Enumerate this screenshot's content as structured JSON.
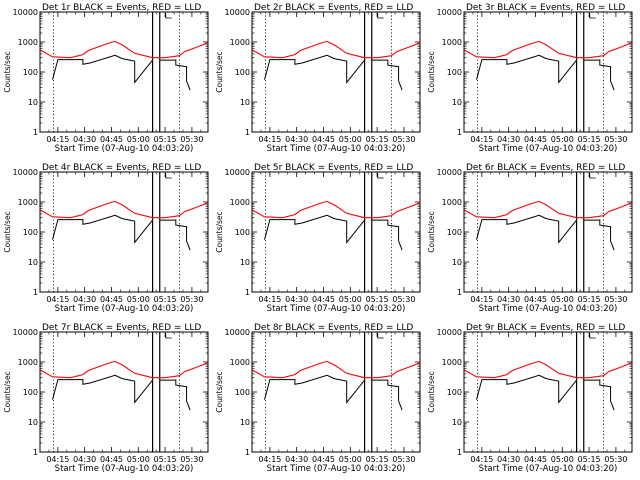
{
  "chart_data": {
    "type": "line",
    "layout": "3x3",
    "x_tick_labels": [
      "04:15",
      "04:30",
      "04:45",
      "05:00",
      "05:15",
      "05:30"
    ],
    "x_ticks_min": [
      15,
      30,
      45,
      60,
      75,
      90
    ],
    "xlim_min": [
      5,
      99
    ],
    "ylim": [
      1,
      10000
    ],
    "yscale": "log",
    "y_tick_values": [
      1,
      10,
      100,
      1000,
      10000
    ],
    "y_tick_labels": [
      "1",
      "10",
      "100",
      "1000",
      "10000"
    ],
    "xlabel": "Start Time (07-Aug-10 04:03:20)",
    "ylabel": "Counts/sec",
    "dotted_lines_min": [
      12.5,
      83
    ],
    "solid_lines_min": [
      68,
      72
    ],
    "lld_color": "#ff0000",
    "events_color": "#000000",
    "series_x_min": [
      5,
      12,
      22,
      29,
      32,
      43,
      47,
      51,
      58,
      66,
      68,
      72,
      75,
      83,
      86,
      92,
      99
    ],
    "lld_values": [
      550,
      320,
      300,
      380,
      520,
      900,
      1050,
      800,
      420,
      320,
      300,
      300,
      300,
      350,
      480,
      650,
      950
    ],
    "events_black": {
      "segments": [
        {
          "x": [
            12,
            15,
            29,
            29,
            33,
            47,
            51,
            58,
            58,
            68
          ],
          "y": [
            55,
            260,
            260,
            180,
            200,
            360,
            280,
            230,
            45,
            250
          ]
        },
        {
          "x": [
            72,
            81,
            81,
            87,
            87,
            89
          ],
          "y": [
            250,
            250,
            170,
            150,
            50,
            25
          ]
        }
      ]
    },
    "panels": [
      {
        "title": "Det 1r BLACK = Events, RED = LLD"
      },
      {
        "title": "Det 2r BLACK = Events, RED = LLD"
      },
      {
        "title": "Det 3r BLACK = Events, RED = LLD"
      },
      {
        "title": "Det 4r BLACK = Events, RED = LLD"
      },
      {
        "title": "Det 5r BLACK = Events, RED = LLD"
      },
      {
        "title": "Det 6r BLACK = Events, RED = LLD"
      },
      {
        "title": "Det 7r BLACK = Events, RED = LLD"
      },
      {
        "title": "Det 8r BLACK = Events, RED = LLD"
      },
      {
        "title": "Det 9r BLACK = Events, RED = LLD"
      }
    ]
  }
}
